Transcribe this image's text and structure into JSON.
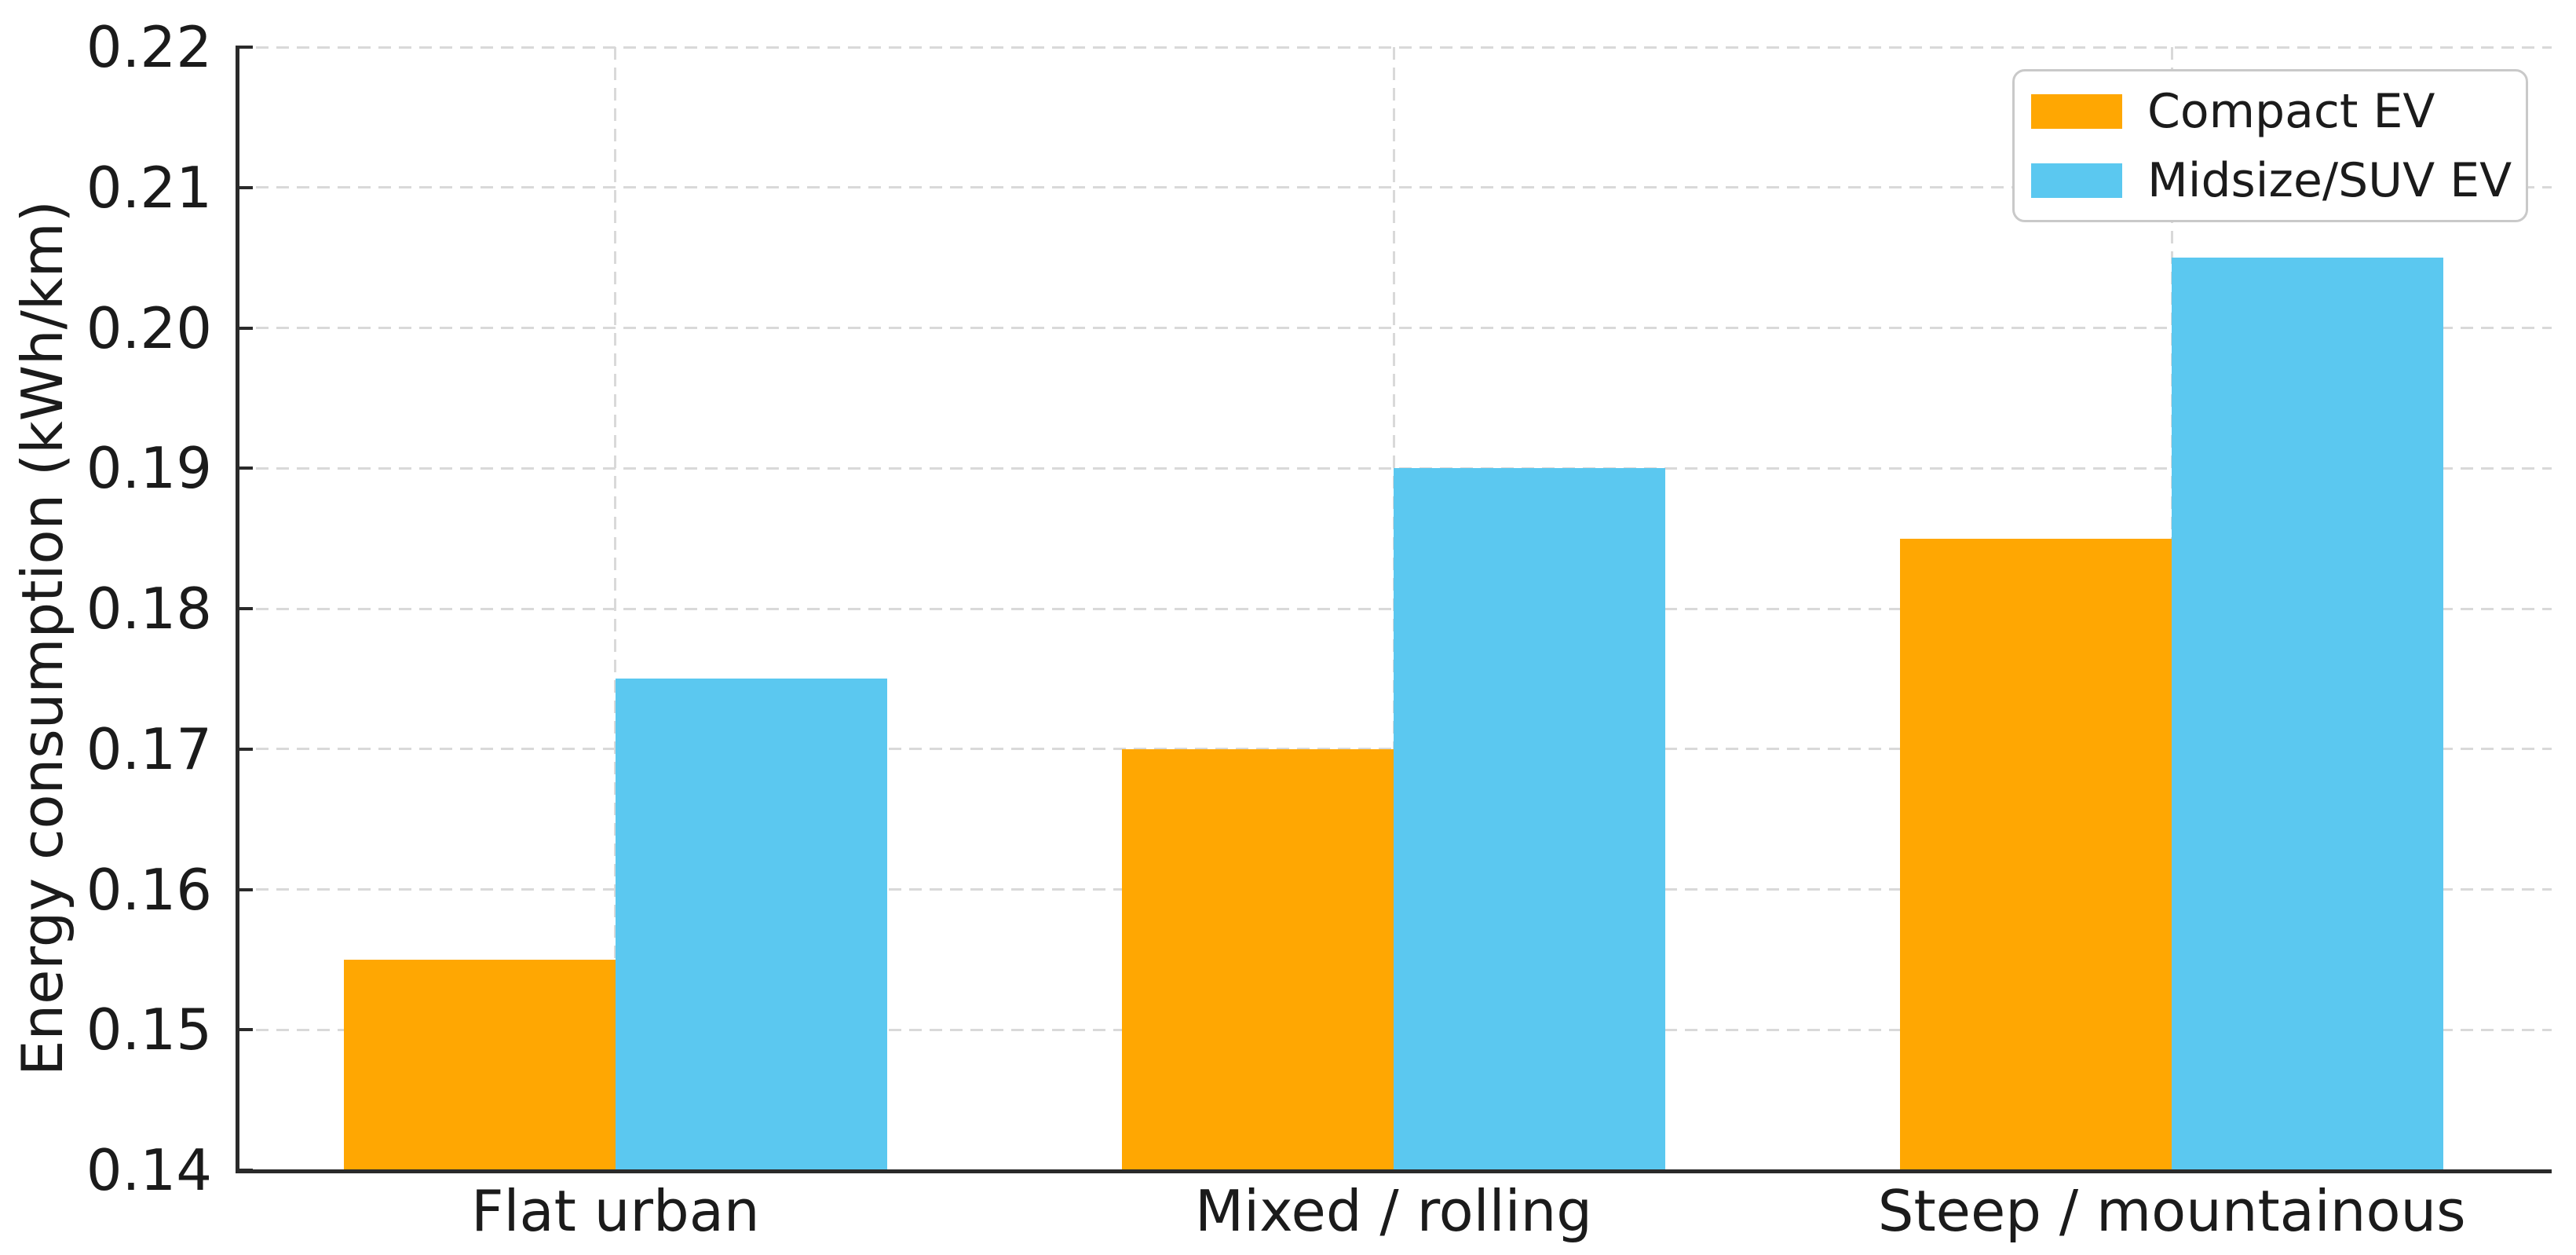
{
  "chart_data": {
    "type": "bar",
    "title": "",
    "xlabel": "",
    "ylabel": "Energy consumption (kWh/km)",
    "categories": [
      "Flat urban",
      "Mixed / rolling",
      "Steep / mountainous"
    ],
    "series": [
      {
        "name": "Compact EV",
        "color": "#FFA702",
        "values": [
          0.155,
          0.17,
          0.185
        ]
      },
      {
        "name": "Midsize/SUV EV",
        "color": "#5BC8F0",
        "values": [
          0.175,
          0.19,
          0.205
        ]
      }
    ],
    "ylim": [
      0.14,
      0.22
    ],
    "ytick_step": 0.01,
    "ytick_labels": [
      "0.14",
      "0.15",
      "0.16",
      "0.17",
      "0.18",
      "0.19",
      "0.20",
      "0.21",
      "0.22"
    ],
    "grid": {
      "horizontal": true,
      "vertical": true,
      "style": "dashed",
      "color": "#d9d9d9"
    },
    "legend": {
      "position": "upper right",
      "border_color": "#c9c9c9"
    },
    "axis_color": "#2a2a2a",
    "text_color": "#1b1b1b"
  }
}
